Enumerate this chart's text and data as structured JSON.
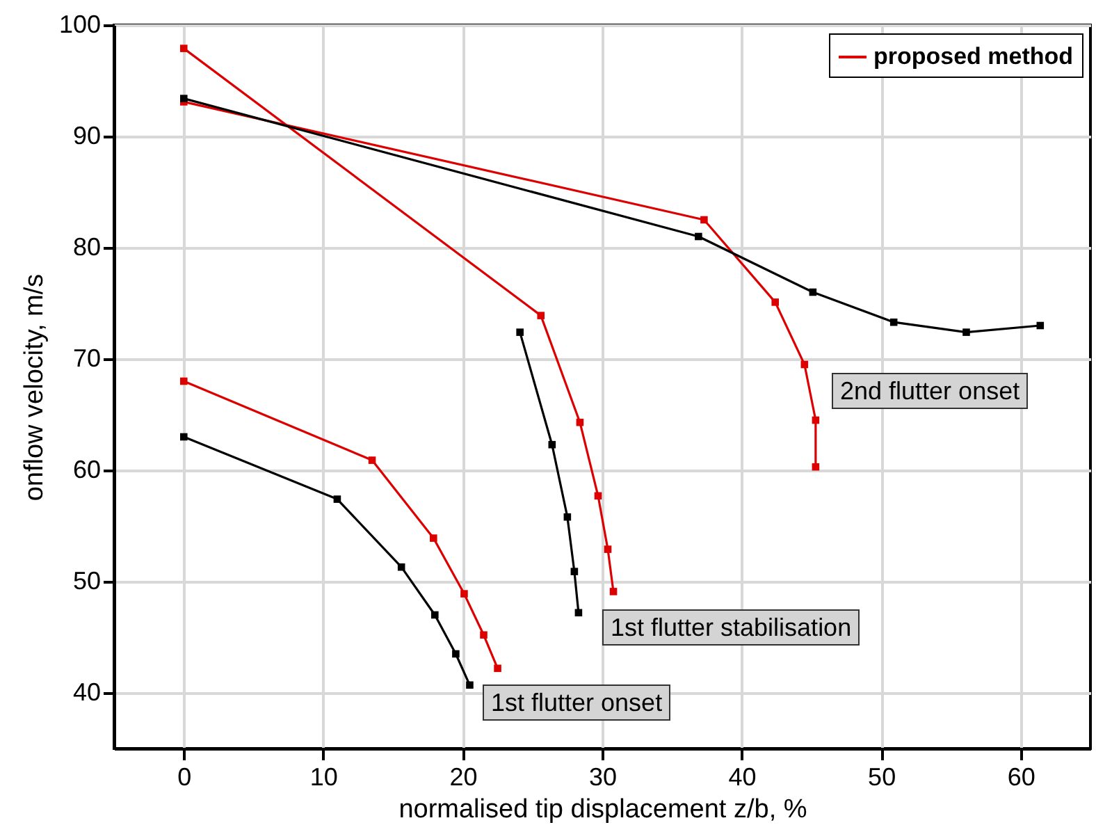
{
  "chart_data": {
    "type": "line",
    "xlabel": "normalised tip displacement z/b, %",
    "ylabel": "onflow velocity, m/s",
    "xlim": [
      -5,
      65
    ],
    "ylim": [
      35,
      100
    ],
    "xticks": [
      0,
      10,
      20,
      30,
      40,
      50,
      60
    ],
    "yticks": [
      40,
      50,
      60,
      70,
      80,
      90,
      100
    ],
    "grid": true,
    "legend": "top right",
    "marker": "square",
    "line_style": "solid",
    "series": [
      {
        "name": "proposed method",
        "color": "#dd0000",
        "x": [
          0,
          25.6,
          28.4,
          29.7,
          30.4,
          30.8,
          null,
          0,
          37.3,
          42.4,
          44.5,
          45.3,
          45.3,
          null,
          0,
          13.5,
          17.9,
          20.1,
          21.5,
          22.5
        ],
        "values": [
          97.9,
          73.9,
          64.3,
          57.7,
          52.9,
          49.1,
          null,
          93.1,
          82.5,
          75.1,
          69.5,
          64.5,
          60.3,
          null,
          68.0,
          60.9,
          53.9,
          48.9,
          45.2,
          42.2
        ]
      },
      {
        "color": "#000000",
        "x": [
          0,
          36.9,
          45.1,
          50.9,
          56.1,
          61.4,
          null,
          24.1,
          26.4,
          27.5,
          28.0,
          28.3,
          null,
          0,
          11.0,
          15.6,
          18.0,
          19.5,
          20.5
        ],
        "values": [
          93.4,
          81.0,
          76.0,
          73.3,
          72.4,
          73.0,
          null,
          72.4,
          62.3,
          55.8,
          50.9,
          47.2,
          null,
          63.0,
          57.4,
          51.3,
          47.0,
          43.5,
          40.7
        ]
      }
    ],
    "annotations": [
      "2nd flutter onset",
      "1st flutter stabilisation",
      "1st flutter onset"
    ]
  }
}
